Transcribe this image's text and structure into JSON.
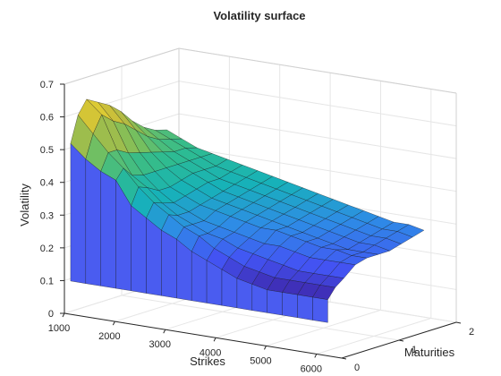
{
  "chart_data": {
    "type": "surface",
    "title": "Volatility surface",
    "xlabel": "Strikes",
    "ylabel": "Maturities",
    "zlabel": "Volatility",
    "xlim": [
      1000,
      6500
    ],
    "ylim": [
      0,
      2
    ],
    "zlim": [
      0,
      0.7
    ],
    "x_ticks": [
      "1000",
      "2000",
      "3000",
      "4000",
      "5000",
      "6000"
    ],
    "y_ticks": [
      "0",
      "1",
      "2"
    ],
    "z_ticks": [
      "0",
      "0.1",
      "0.2",
      "0.3",
      "0.4",
      "0.5",
      "0.6",
      "0.7"
    ],
    "grid": true,
    "colormap": [
      "#3e26a8",
      "#4354f4",
      "#2e8ce6",
      "#17b2b8",
      "#2fbc8f",
      "#7cbf5b",
      "#c1ba3d",
      "#f6d92b"
    ],
    "strikes": [
      1100,
      1400,
      1700,
      2000,
      2300,
      2600,
      2900,
      3200,
      3500,
      3800,
      4100,
      4400,
      4700,
      5000,
      5300,
      5600,
      5900,
      6200
    ],
    "maturities": [
      0.02,
      0.15,
      0.3,
      0.5,
      0.7,
      0.9,
      1.1,
      1.3,
      1.5,
      1.7
    ],
    "volatility": [
      [
        0.52,
        0.48,
        0.45,
        0.43,
        0.36,
        0.33,
        0.3,
        0.28,
        0.25,
        0.23,
        0.21,
        0.19,
        0.18,
        0.17,
        0.17,
        0.17,
        0.17,
        0.17
      ],
      [
        0.6,
        0.55,
        0.5,
        0.46,
        0.41,
        0.37,
        0.34,
        0.31,
        0.29,
        0.26,
        0.24,
        0.22,
        0.21,
        0.2,
        0.2,
        0.2,
        0.2,
        0.2
      ],
      [
        0.64,
        0.6,
        0.5,
        0.43,
        0.4,
        0.36,
        0.33,
        0.31,
        0.29,
        0.28,
        0.26,
        0.25,
        0.24,
        0.23,
        0.22,
        0.22,
        0.22,
        0.22
      ],
      [
        0.62,
        0.57,
        0.48,
        0.42,
        0.38,
        0.35,
        0.33,
        0.31,
        0.3,
        0.29,
        0.28,
        0.27,
        0.27,
        0.26,
        0.25,
        0.25,
        0.25,
        0.25
      ],
      [
        0.6,
        0.55,
        0.47,
        0.42,
        0.38,
        0.36,
        0.34,
        0.33,
        0.32,
        0.31,
        0.3,
        0.3,
        0.29,
        0.28,
        0.27,
        0.27,
        0.26,
        0.26
      ],
      [
        0.57,
        0.52,
        0.46,
        0.42,
        0.39,
        0.37,
        0.35,
        0.34,
        0.33,
        0.32,
        0.31,
        0.3,
        0.29,
        0.28,
        0.27,
        0.26,
        0.26,
        0.26
      ],
      [
        0.53,
        0.49,
        0.45,
        0.42,
        0.4,
        0.38,
        0.36,
        0.35,
        0.34,
        0.33,
        0.32,
        0.31,
        0.3,
        0.29,
        0.28,
        0.27,
        0.27,
        0.26
      ],
      [
        0.5,
        0.47,
        0.44,
        0.42,
        0.4,
        0.38,
        0.37,
        0.36,
        0.35,
        0.34,
        0.33,
        0.32,
        0.31,
        0.3,
        0.29,
        0.28,
        0.28,
        0.27
      ],
      [
        0.48,
        0.46,
        0.44,
        0.42,
        0.4,
        0.39,
        0.38,
        0.37,
        0.36,
        0.35,
        0.34,
        0.33,
        0.32,
        0.31,
        0.3,
        0.29,
        0.29,
        0.28
      ],
      [
        0.47,
        0.45,
        0.43,
        0.42,
        0.41,
        0.4,
        0.39,
        0.38,
        0.37,
        0.36,
        0.35,
        0.34,
        0.33,
        0.32,
        0.31,
        0.3,
        0.3,
        0.29
      ]
    ]
  }
}
